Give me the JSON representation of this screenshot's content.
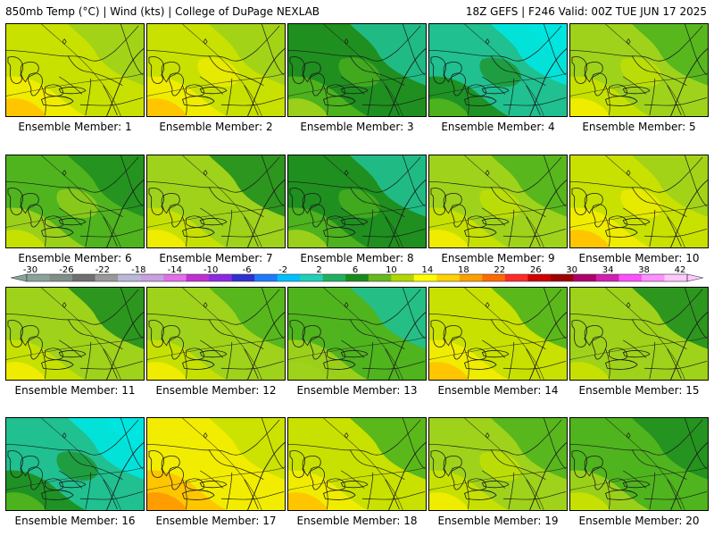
{
  "header": {
    "left": "850mb Temp (°C) | Wind (kts) | College of DuPage NEXLAB",
    "right": "18Z GEFS | F246 Valid: 00Z TUE JUN 17 2025"
  },
  "members": [
    {
      "label": "Ensemble Member: 1",
      "warmth": 0.62
    },
    {
      "label": "Ensemble Member: 2",
      "warmth": 0.68
    },
    {
      "label": "Ensemble Member: 3",
      "warmth": 0.3
    },
    {
      "label": "Ensemble Member: 4",
      "warmth": 0.18
    },
    {
      "label": "Ensemble Member: 5",
      "warmth": 0.55
    },
    {
      "label": "Ensemble Member: 6",
      "warmth": 0.4
    },
    {
      "label": "Ensemble Member: 7",
      "warmth": 0.45
    },
    {
      "label": "Ensemble Member: 8",
      "warmth": 0.28
    },
    {
      "label": "Ensemble Member: 9",
      "warmth": 0.52
    },
    {
      "label": "Ensemble Member: 10",
      "warmth": 0.66
    },
    {
      "label": "Ensemble Member: 11",
      "warmth": 0.48
    },
    {
      "label": "Ensemble Member: 12",
      "warmth": 0.5
    },
    {
      "label": "Ensemble Member: 13",
      "warmth": 0.32
    },
    {
      "label": "Ensemble Member: 14",
      "warmth": 0.58
    },
    {
      "label": "Ensemble Member: 15",
      "warmth": 0.44
    },
    {
      "label": "Ensemble Member: 16",
      "warmth": 0.15
    },
    {
      "label": "Ensemble Member: 17",
      "warmth": 0.75
    },
    {
      "label": "Ensemble Member: 18",
      "warmth": 0.6
    },
    {
      "label": "Ensemble Member: 19",
      "warmth": 0.52
    },
    {
      "label": "Ensemble Member: 20",
      "warmth": 0.38
    }
  ],
  "colorbar": {
    "labels": [
      "-30",
      "-26",
      "-22",
      "-18",
      "-14",
      "-10",
      "-6",
      "-2",
      "2",
      "6",
      "10",
      "14",
      "18",
      "22",
      "26",
      "30",
      "34",
      "38",
      "42"
    ],
    "colors": [
      "#8aa39a",
      "#7f8f87",
      "#6f6f6f",
      "#999999",
      "#b8b8d8",
      "#c8a0e0",
      "#e070e8",
      "#c030d0",
      "#8a2be2",
      "#3030d0",
      "#1e7bff",
      "#00c0ff",
      "#20d0b8",
      "#20b060",
      "#1a8a1a",
      "#66b81e",
      "#b2d600",
      "#ffff00",
      "#ffd200",
      "#ffa000",
      "#ff6a00",
      "#ff2a2a",
      "#d00000",
      "#a00000",
      "#b0006a",
      "#d020b0",
      "#ff50ff",
      "#ff90ff",
      "#ffc8ff"
    ]
  },
  "palette": {
    "cyan": "#00e5e0",
    "teal": "#20c090",
    "darkgreen": "#1f8f1f",
    "green": "#4fb41e",
    "lime": "#9fd21a",
    "yellowgreen": "#c8e100",
    "yellow": "#f2ec00",
    "orange": "#ffc400",
    "darkorange": "#ff9a00",
    "lines": "#1a1a1a"
  }
}
